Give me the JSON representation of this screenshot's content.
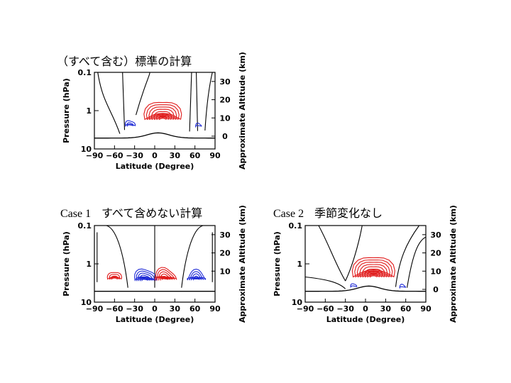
{
  "colors": {
    "positive": "#e01b1b",
    "negative": "#1f2bd6",
    "neutral": "#000000"
  },
  "chart_data": [
    {
      "type": "contour",
      "title": "（すべて含む）標準の計算",
      "case_label": "",
      "xlabel": "Latitude (Degree)",
      "ylabel": "Pressure (hPa)",
      "y2label": "Approximate Altitude (km)",
      "xlim": [
        -90,
        90
      ],
      "ylim": [
        10,
        0.1
      ],
      "yscale": "log",
      "xticks": [
        "−90",
        "−60",
        "−30",
        "0",
        "30",
        "60",
        "90"
      ],
      "yticks": [
        "0.1",
        "1",
        "10"
      ],
      "y2ticks": [
        "0",
        "10",
        "20",
        "30"
      ],
      "series": [
        {
          "sign": "positive",
          "center_lat": 12,
          "center_p": 1.7,
          "levels": 7
        },
        {
          "sign": "negative",
          "center_lat": -37,
          "center_p": 2.5,
          "levels": 2
        },
        {
          "sign": "negative",
          "center_lat": 65,
          "center_p": 2.6,
          "levels": 1
        }
      ]
    },
    {
      "type": "contour",
      "title": "すべて含めない計算",
      "case_label": "Case 1",
      "xlabel": "Latitude (Degree)",
      "ylabel": "Pressure (hPa)",
      "y2label": "Approximate Altitude (km)",
      "xlim": [
        -90,
        90
      ],
      "ylim": [
        10,
        0.1
      ],
      "yscale": "log",
      "xticks": [
        "−90",
        "−60",
        "−30",
        "0",
        "30",
        "60",
        "90"
      ],
      "yticks": [
        "0.1",
        "1",
        "10"
      ],
      "y2ticks": [
        "10",
        "20",
        "30"
      ],
      "series": [
        {
          "sign": "positive",
          "center_lat": -60,
          "center_p": 2.5,
          "levels": 3
        },
        {
          "sign": "negative",
          "center_lat": -15,
          "center_p": 2.7,
          "levels": 5
        },
        {
          "sign": "positive",
          "center_lat": 15,
          "center_p": 2.6,
          "levels": 5
        },
        {
          "sign": "negative",
          "center_lat": 62,
          "center_p": 2.6,
          "levels": 4
        }
      ]
    },
    {
      "type": "contour",
      "title": "季節変化なし",
      "case_label": "Case 2",
      "xlabel": "Latitude (Degree)",
      "ylabel": "Pressure (hPa)",
      "y2label": "Approximate Altitude (km)",
      "xlim": [
        -90,
        90
      ],
      "ylim": [
        10,
        0.1
      ],
      "yscale": "log",
      "xticks": [
        "−90",
        "−60",
        "−30",
        "0",
        "30",
        "60",
        "90"
      ],
      "yticks": [
        "0.1",
        "1",
        "10"
      ],
      "y2ticks": [
        "0",
        "10",
        "20",
        "30"
      ],
      "series": [
        {
          "sign": "positive",
          "center_lat": 12,
          "center_p": 2.2,
          "levels": 8
        },
        {
          "sign": "negative",
          "center_lat": -18,
          "center_p": 4.0,
          "levels": 1
        },
        {
          "sign": "negative",
          "center_lat": 55,
          "center_p": 4.2,
          "levels": 1
        }
      ]
    }
  ]
}
